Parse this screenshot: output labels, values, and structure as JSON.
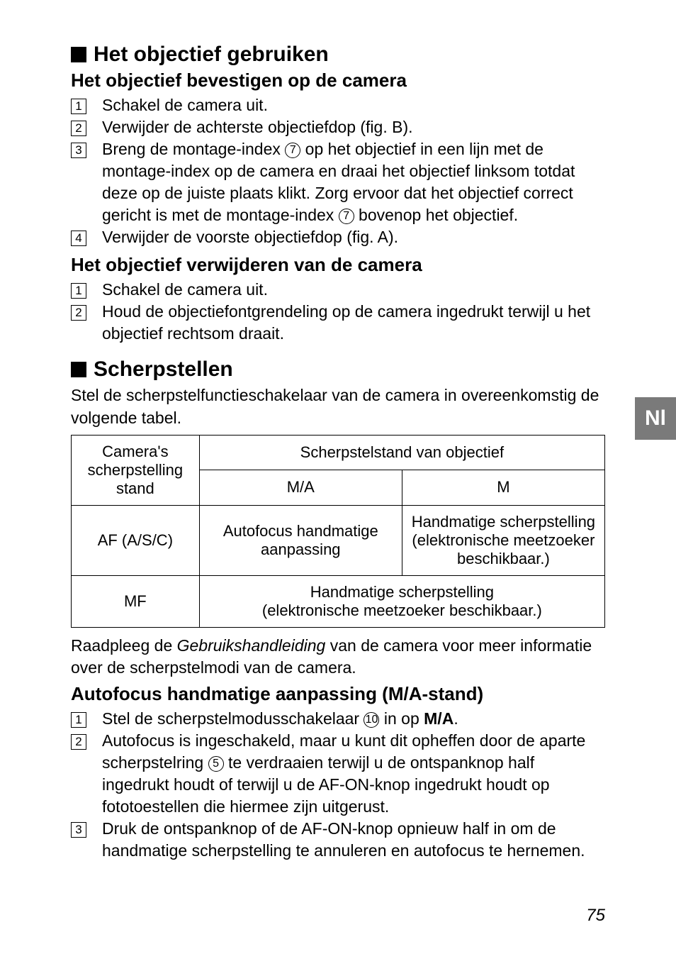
{
  "section1": {
    "title": "Het objectief gebruiken",
    "sub1_title": "Het objectief bevestigen op de camera",
    "steps1": [
      "Schakel de camera uit.",
      "Verwijder de achterste objectiefdop (fig. B).",
      "Breng de montage-index {c7} op het objectief in een lijn met de montage-index op de camera en draai het objectief linksom totdat deze op de juiste plaats klikt. Zorg ervoor dat het objectief correct gericht is met de montage-index {c7} bovenop het objectief.",
      "Verwijder de voorste objectiefdop (fig. A)."
    ],
    "sub2_title": "Het objectief verwijderen van de camera",
    "steps2": [
      "Schakel de camera uit.",
      "Houd de objectiefontgrendeling op de camera ingedrukt terwijl u het objectief rechtsom draait."
    ]
  },
  "section2": {
    "title": "Scherpstellen",
    "intro": "Stel de scherpstelfunctieschakelaar van de camera in overeenkomstig de volgende tabel.",
    "table": {
      "hdr_cam": "Camera's scherpstelling stand",
      "hdr_lens": "Scherpstelstand van objectief",
      "col_ma": "M/A",
      "col_m": "M",
      "row1_cam": "AF (A/S/C)",
      "row1_ma": "Autofocus handmatige aanpassing",
      "row1_m": "Handmatige scherpstelling (elektronische meetzoeker beschikbaar.)",
      "row2_cam": "MF",
      "row2_span": "Handmatige scherpstelling\n(elektronische meetzoeker beschikbaar.)"
    },
    "after_table": "Raadpleeg de {i}Gebruikshandleiding{/i} van de camera voor meer informatie over de scherpstelmodi van de camera.",
    "sub3_title": "Autofocus handmatige aanpassing (M/A-stand)",
    "steps3": [
      "Stel de scherpstelmodusschakelaar {c10} in op {b}M/A{/b}.",
      "Autofocus is ingeschakeld, maar u kunt dit opheffen door de aparte scherpstelring {c5} te verdraaien terwijl u de ontspanknop half ingedrukt houdt of terwijl u de AF-ON-knop ingedrukt houdt op fototoestellen die hiermee zijn uitgerust.",
      "Druk de ontspanknop of de AF-ON-knop opnieuw half in om de handmatige scherpstelling te annuleren en autofocus te hernemen."
    ]
  },
  "side_tab": "Nl",
  "page_number": "75"
}
